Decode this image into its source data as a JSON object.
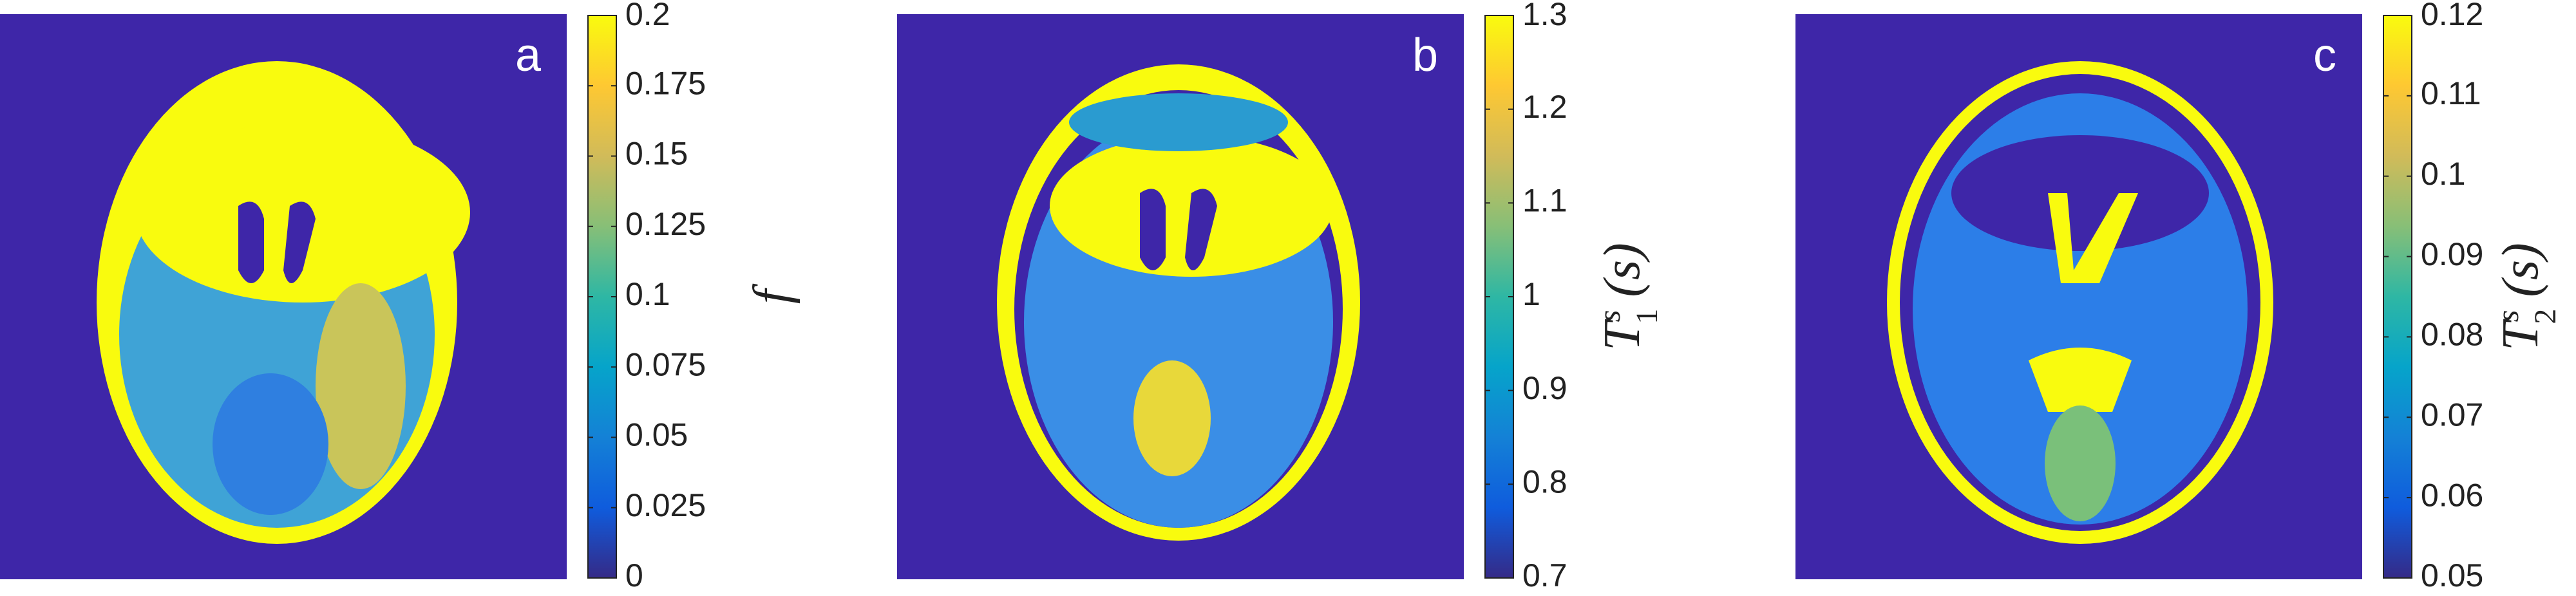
{
  "chart_data": [
    {
      "type": "image",
      "panel_label": "a",
      "colormap": "parula",
      "ylim": [
        0,
        0.2
      ],
      "yticks": [
        0,
        0.025,
        0.05,
        0.075,
        0.1,
        0.125,
        0.15,
        0.175,
        0.2
      ],
      "colorbar_label": {
        "base": "f"
      }
    },
    {
      "type": "image",
      "panel_label": "b",
      "colormap": "parula",
      "ylim": [
        0.7,
        1.3
      ],
      "yticks": [
        0.7,
        0.8,
        0.9,
        1,
        1.1,
        1.2,
        1.3
      ],
      "colorbar_label": {
        "base": "T",
        "superscript": "s",
        "subscript": "1",
        "suffix": "(s)"
      }
    },
    {
      "type": "image",
      "panel_label": "c",
      "colormap": "parula",
      "ylim": [
        0.05,
        0.12
      ],
      "yticks": [
        0.05,
        0.06,
        0.07,
        0.08,
        0.09,
        0.1,
        0.11,
        0.12
      ],
      "colorbar_label": {
        "base": "T",
        "superscript": "s",
        "subscript": "2",
        "suffix": "(s)"
      }
    }
  ]
}
